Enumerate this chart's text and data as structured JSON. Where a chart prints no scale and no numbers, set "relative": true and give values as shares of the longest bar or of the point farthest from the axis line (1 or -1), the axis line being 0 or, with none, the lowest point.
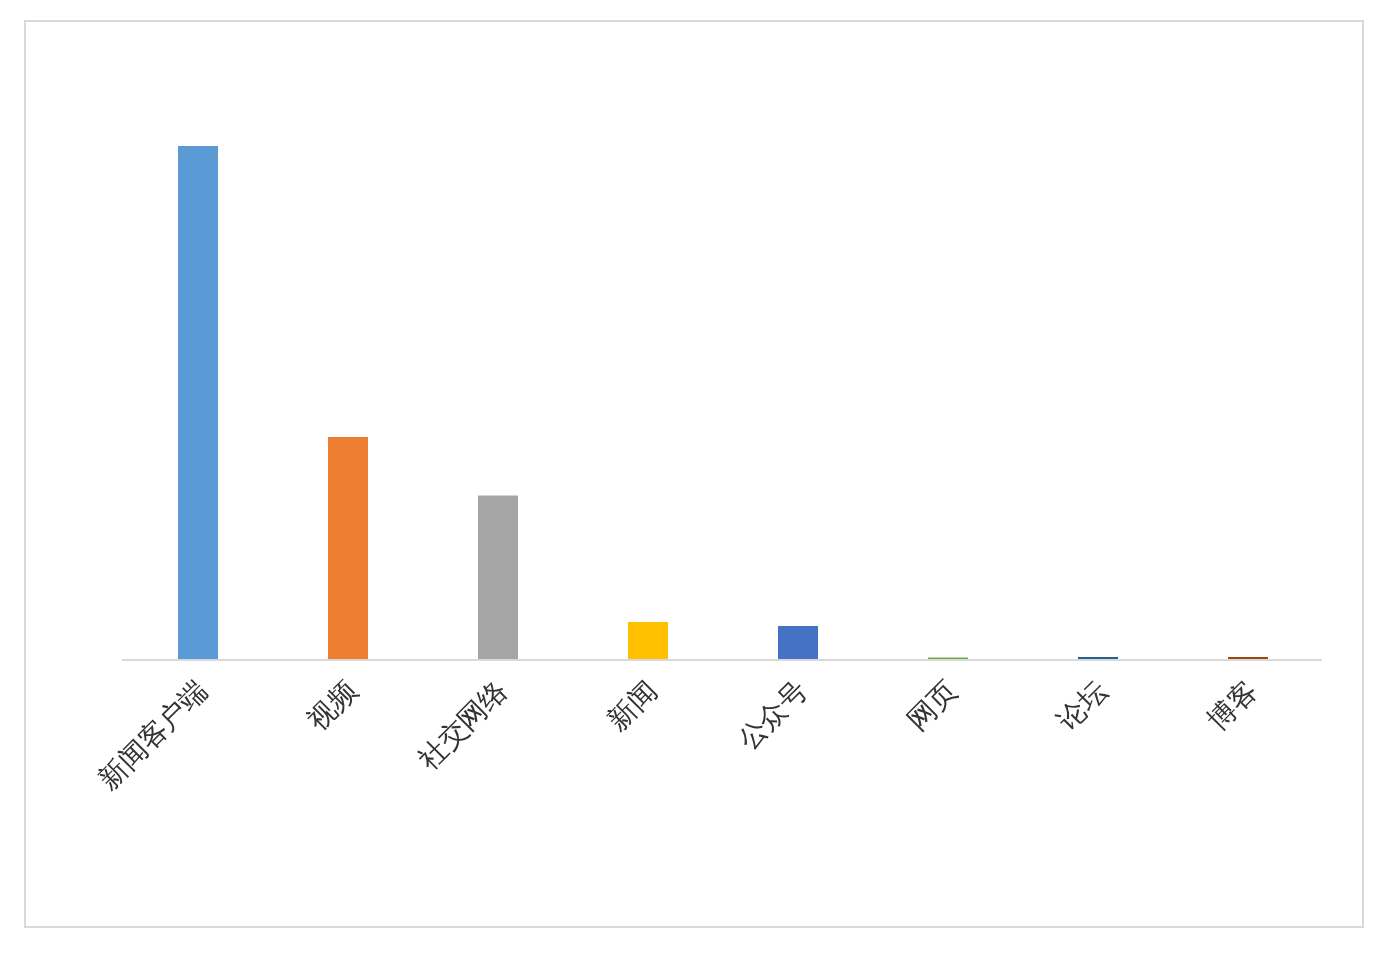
{
  "chart_data": {
    "type": "bar",
    "relative": true,
    "categories": [
      "新闻客户端",
      "视频",
      "社交网络",
      "新闻",
      "公众号",
      "网页",
      "论坛",
      "博客"
    ],
    "values": [
      1,
      0.434,
      0.32,
      0.074,
      0.066,
      0.005,
      0.006,
      0.006
    ],
    "colors": [
      "#5b9bd5",
      "#ed7d31",
      "#a5a5a5",
      "#ffc000",
      "#4472c4",
      "#70ad47",
      "#255e91",
      "#9e480e"
    ],
    "grid": false
  }
}
